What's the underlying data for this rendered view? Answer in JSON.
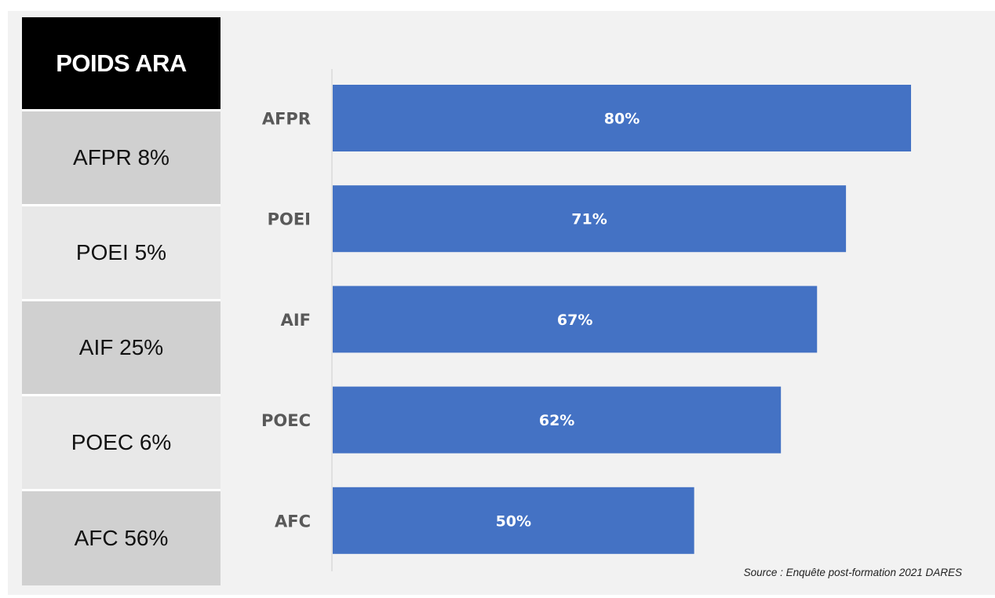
{
  "table": {
    "header": "POIDS ARA",
    "rows": [
      {
        "label": "AFPR 8%",
        "shade": "dark"
      },
      {
        "label": "POEI 5%",
        "shade": "light"
      },
      {
        "label": "AIF 25%",
        "shade": "dark"
      },
      {
        "label": "POEC 6%",
        "shade": "light"
      },
      {
        "label": "AFC 56%",
        "shade": "dark"
      }
    ]
  },
  "chart_data": {
    "type": "bar",
    "orientation": "horizontal",
    "categories": [
      "AFPR",
      "POEI",
      "AIF",
      "POEC",
      "AFC"
    ],
    "values": [
      80,
      71,
      67,
      62,
      50
    ],
    "data_labels": [
      "80%",
      "71%",
      "67%",
      "62%",
      "50%"
    ],
    "xlim": [
      0,
      100
    ],
    "grid": false,
    "bar_color": "#4472c4",
    "label_color": "#ffffff",
    "category_label_color": "#595959"
  },
  "source": "Source : Enquête post-formation 2021 DARES"
}
